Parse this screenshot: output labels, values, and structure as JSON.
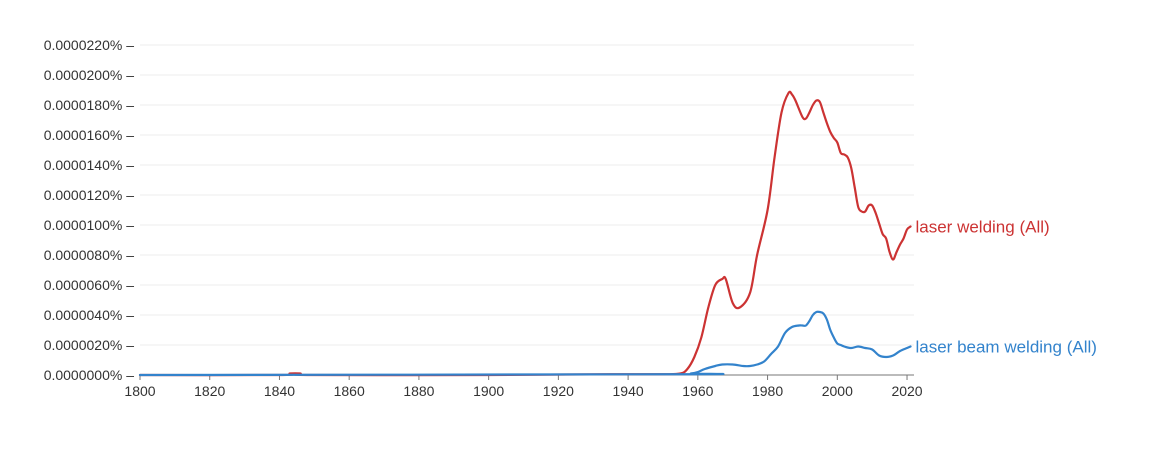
{
  "chart_data": {
    "type": "line",
    "title": "",
    "xlabel": "",
    "ylabel": "",
    "xlim": [
      1800,
      2022
    ],
    "ylim": [
      0,
      2.2e-05
    ],
    "grid": true,
    "legend": "inline-right",
    "x_ticks": [
      1800,
      1820,
      1840,
      1860,
      1880,
      1900,
      1920,
      1940,
      1960,
      1980,
      2000,
      2020
    ],
    "x_tick_labels": [
      "1800",
      "1820",
      "1840",
      "1860",
      "1880",
      "1900",
      "1920",
      "1940",
      "1960",
      "1980",
      "2000",
      "2020"
    ],
    "y_ticks": [
      0,
      2e-06,
      4e-06,
      6e-06,
      8e-06,
      1e-05,
      1.2e-05,
      1.4e-05,
      1.6e-05,
      1.8e-05,
      2e-05,
      2.2e-05
    ],
    "y_tick_labels": [
      "0.0000000%",
      "0.0000020%",
      "0.0000040%",
      "0.0000060%",
      "0.0000080%",
      "0.0000100%",
      "0.0000120%",
      "0.0000140%",
      "0.0000160%",
      "0.0000180%",
      "0.0000200%",
      "0.0000220%"
    ],
    "series": [
      {
        "name": "laser welding (All)",
        "color": "#cc3333",
        "x": [
          1800,
          1840,
          1843,
          1846,
          1849,
          1900,
          1935,
          1950,
          1955,
          1957,
          1959,
          1961,
          1963,
          1965,
          1967,
          1968,
          1970,
          1972,
          1975,
          1977,
          1980,
          1982,
          1984,
          1986,
          1987,
          1988,
          1990,
          1991,
          1992,
          1993,
          1994,
          1995,
          1996,
          1997,
          1998,
          1999,
          2000,
          2001,
          2002,
          2003,
          2004,
          2005,
          2006,
          2007,
          2008,
          2009,
          2010,
          2011,
          2012,
          2013,
          2014,
          2015,
          2016,
          2017,
          2018,
          2019,
          2020,
          2021
        ],
        "values": [
          0,
          0,
          1e-07,
          1e-07,
          0,
          0,
          5e-08,
          5e-08,
          1e-07,
          4e-07,
          1.2e-06,
          2.5e-06,
          4.5e-06,
          6e-06,
          6.4e-06,
          6.4e-06,
          4.8e-06,
          4.5e-06,
          5.5e-06,
          8e-06,
          1.1e-05,
          1.45e-05,
          1.75e-05,
          1.88e-05,
          1.87e-05,
          1.83e-05,
          1.72e-05,
          1.71e-05,
          1.75e-05,
          1.8e-05,
          1.83e-05,
          1.82e-05,
          1.75e-05,
          1.68e-05,
          1.62e-05,
          1.58e-05,
          1.55e-05,
          1.48e-05,
          1.47e-05,
          1.45e-05,
          1.38e-05,
          1.25e-05,
          1.12e-05,
          1.09e-05,
          1.09e-05,
          1.13e-05,
          1.13e-05,
          1.08e-05,
          1.01e-05,
          9.4e-06,
          9.1e-06,
          8.2e-06,
          7.7e-06,
          8.2e-06,
          8.7e-06,
          9.1e-06,
          9.7e-06,
          9.9e-06
        ]
      },
      {
        "name": "laser beam welding (All)",
        "color": "#3383cc",
        "x": [
          1800,
          1955,
          1958,
          1960,
          1962,
          1965,
          1967,
          1970,
          1973,
          1975,
          1977,
          1979,
          1981,
          1983,
          1985,
          1987,
          1989,
          1990,
          1991,
          1992,
          1993,
          1994,
          1995,
          1996,
          1997,
          1998,
          1999,
          2000,
          2001,
          2002,
          2004,
          2006,
          2008,
          2010,
          2012,
          2014,
          2016,
          2018,
          2020,
          2021
        ],
        "values": [
          0,
          5e-08,
          1e-07,
          2e-07,
          4e-07,
          6e-07,
          7e-07,
          7e-07,
          6e-07,
          6e-07,
          7e-07,
          9e-07,
          1.4e-06,
          1.9e-06,
          2.8e-06,
          3.2e-06,
          3.3e-06,
          3.3e-06,
          3.3e-06,
          3.6e-06,
          4e-06,
          4.2e-06,
          4.2e-06,
          4.1e-06,
          3.7e-06,
          3e-06,
          2.5e-06,
          2.1e-06,
          2e-06,
          1.9e-06,
          1.8e-06,
          1.9e-06,
          1.8e-06,
          1.7e-06,
          1.3e-06,
          1.2e-06,
          1.3e-06,
          1.6e-06,
          1.8e-06,
          1.9e-06
        ]
      }
    ]
  }
}
